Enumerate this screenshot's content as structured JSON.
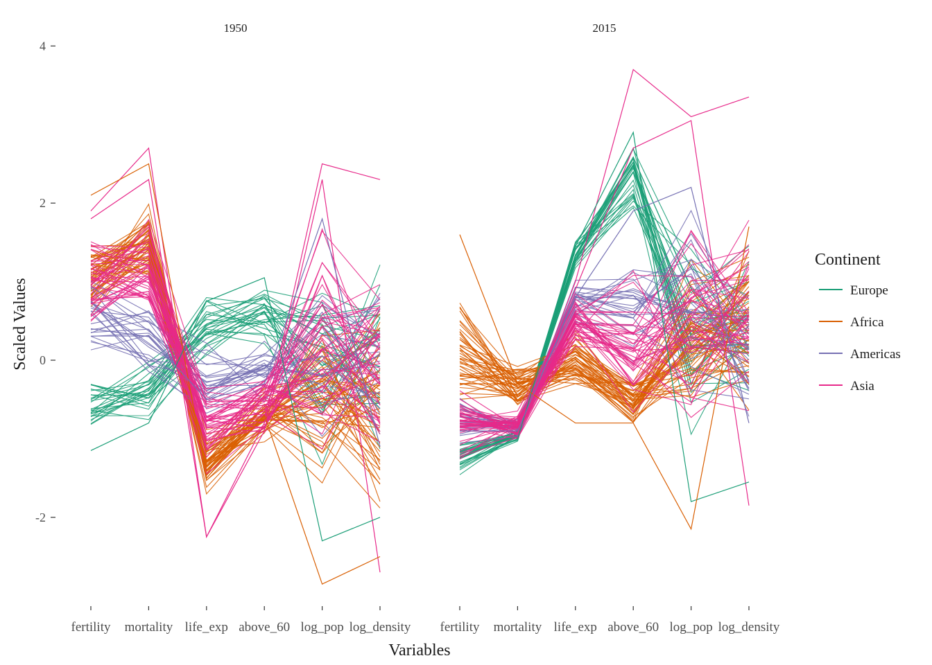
{
  "chart_data": {
    "type": "line",
    "subtype": "parallel-coordinates",
    "xlabel": "Variables",
    "ylabel": "Scaled Values",
    "variables": [
      "fertility",
      "mortality",
      "life_exp",
      "above_60",
      "log_pop",
      "log_density"
    ],
    "y_ticks": [
      4,
      2,
      0,
      -2
    ],
    "ylim": [
      -3.1,
      4.1
    ],
    "grid": false,
    "legend": {
      "title": "Continent",
      "position": "right",
      "entries": [
        {
          "name": "Europe",
          "color": "#1b9e77"
        },
        {
          "name": "Africa",
          "color": "#d95f02"
        },
        {
          "name": "Americas",
          "color": "#7570b3"
        },
        {
          "name": "Asia",
          "color": "#e7298a"
        }
      ]
    },
    "panels": [
      {
        "title": "1950",
        "groups": {
          "Europe": {
            "count": 28,
            "mean": [
              -0.6,
              -0.4,
              0.4,
              0.55,
              0.05,
              0.1
            ],
            "spread": [
              0.3,
              0.25,
              0.25,
              0.3,
              0.75,
              0.7
            ]
          },
          "Africa": {
            "count": 48,
            "mean": [
              1.1,
              1.45,
              -1.25,
              -0.7,
              -0.5,
              -0.6
            ],
            "spread": [
              0.3,
              0.3,
              0.25,
              0.2,
              0.7,
              0.8
            ]
          },
          "Americas": {
            "count": 24,
            "mean": [
              0.6,
              0.3,
              -0.3,
              -0.1,
              -0.15,
              -0.1
            ],
            "spread": [
              0.45,
              0.35,
              0.35,
              0.3,
              0.65,
              0.6
            ]
          },
          "Asia": {
            "count": 40,
            "mean": [
              1.0,
              1.1,
              -0.8,
              -0.6,
              0.1,
              -0.05
            ],
            "spread": [
              0.45,
              0.5,
              0.4,
              0.3,
              0.9,
              0.75
            ]
          }
        },
        "extremes": [
          {
            "group": "Asia",
            "values": [
              1.9,
              2.7,
              -2.25,
              -0.8,
              2.5,
              2.3
            ]
          },
          {
            "group": "Asia",
            "values": [
              1.8,
              2.3,
              -2.25,
              -0.9,
              2.3,
              -2.7
            ]
          },
          {
            "group": "Africa",
            "values": [
              2.1,
              2.5,
              -1.5,
              -0.7,
              -2.85,
              -2.5
            ]
          },
          {
            "group": "Europe",
            "values": [
              -1.15,
              -0.8,
              0.75,
              1.05,
              -2.3,
              -2.0
            ]
          },
          {
            "group": "Americas",
            "values": [
              0.4,
              0.3,
              -0.5,
              -0.3,
              1.8,
              -1.1
            ]
          }
        ]
      },
      {
        "title": "2015",
        "groups": {
          "Europe": {
            "count": 28,
            "mean": [
              -1.25,
              -0.95,
              1.35,
              2.35,
              0.3,
              0.5
            ],
            "spread": [
              0.12,
              0.05,
              0.1,
              0.35,
              0.75,
              0.7
            ]
          },
          "Africa": {
            "count": 48,
            "mean": [
              0.15,
              -0.35,
              0.05,
              -0.55,
              0.2,
              0.4
            ],
            "spread": [
              0.5,
              0.2,
              0.25,
              0.25,
              0.7,
              0.8
            ]
          },
          "Americas": {
            "count": 24,
            "mean": [
              -0.75,
              -0.85,
              0.75,
              0.8,
              0.55,
              0.2
            ],
            "spread": [
              0.25,
              0.1,
              0.2,
              0.6,
              0.75,
              0.5
            ]
          },
          "Asia": {
            "count": 40,
            "mean": [
              -0.8,
              -0.85,
              0.55,
              0.2,
              0.5,
              0.6
            ],
            "spread": [
              0.3,
              0.1,
              0.25,
              0.6,
              0.8,
              0.7
            ]
          }
        },
        "extremes": [
          {
            "group": "Asia",
            "values": [
              -0.7,
              -0.95,
              1.0,
              3.7,
              3.1,
              3.35
            ]
          },
          {
            "group": "Asia",
            "values": [
              -0.6,
              -0.9,
              0.9,
              2.7,
              3.05,
              -1.85
            ]
          },
          {
            "group": "Europe",
            "values": [
              -1.3,
              -1.0,
              1.45,
              2.9,
              -1.8,
              -1.55
            ]
          },
          {
            "group": "Africa",
            "values": [
              1.6,
              -0.3,
              -0.8,
              -0.8,
              -2.15,
              1.7
            ]
          },
          {
            "group": "Americas",
            "values": [
              -0.9,
              -0.9,
              0.8,
              1.9,
              2.2,
              -0.8
            ]
          }
        ]
      }
    ]
  }
}
